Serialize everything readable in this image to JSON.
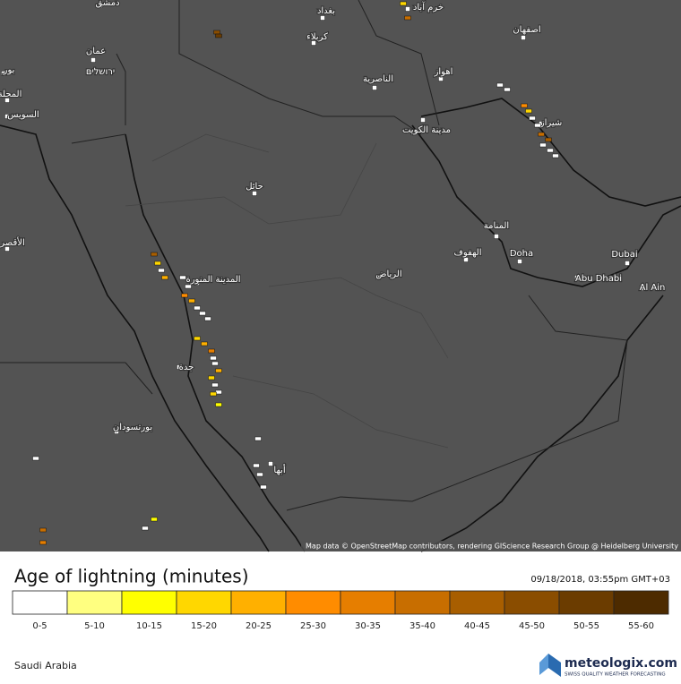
{
  "map": {
    "cities": [
      "دمشق",
      "بغداد",
      "خرم آباد",
      "كربلاء",
      "اصفهان",
      "عمان",
      "ירושלים",
      "الناصرية",
      "اهواز",
      "السويس",
      "مدينة الكويت",
      "شيراز",
      "حائل",
      "المنامة",
      "الهفوف",
      "Doha",
      "Dubai",
      "الرياض",
      "Abu Dhabi",
      "Al Ain",
      "المدينة المنورة",
      "جدة",
      "بورتسودان",
      "أبها",
      "الأقصر",
      "المحلة",
      "بور"
    ],
    "attribution": "Map data © OpenStreetMap contributors, rendering GIScience Research Group @ Heidelberg University"
  },
  "legend": {
    "title": "Age of lightning (minutes)",
    "timestamp": "09/18/2018, 03:55pm GMT+03",
    "items": [
      {
        "label": "0-5",
        "color": "#ffffff"
      },
      {
        "label": "5-10",
        "color": "#ffff80"
      },
      {
        "label": "10-15",
        "color": "#ffff00"
      },
      {
        "label": "15-20",
        "color": "#ffd700"
      },
      {
        "label": "20-25",
        "color": "#ffb000"
      },
      {
        "label": "25-30",
        "color": "#ff8c00"
      },
      {
        "label": "30-35",
        "color": "#e67e00"
      },
      {
        "label": "35-40",
        "color": "#c86e00"
      },
      {
        "label": "40-45",
        "color": "#a85e00"
      },
      {
        "label": "45-50",
        "color": "#8a4d00"
      },
      {
        "label": "50-55",
        "color": "#6b3c00"
      },
      {
        "label": "55-60",
        "color": "#4d2b00"
      }
    ]
  },
  "footer": {
    "region": "Saudi Arabia",
    "brand": "meteologix.com",
    "tagline": "SWISS QUALITY WEATHER FORECASTING"
  }
}
